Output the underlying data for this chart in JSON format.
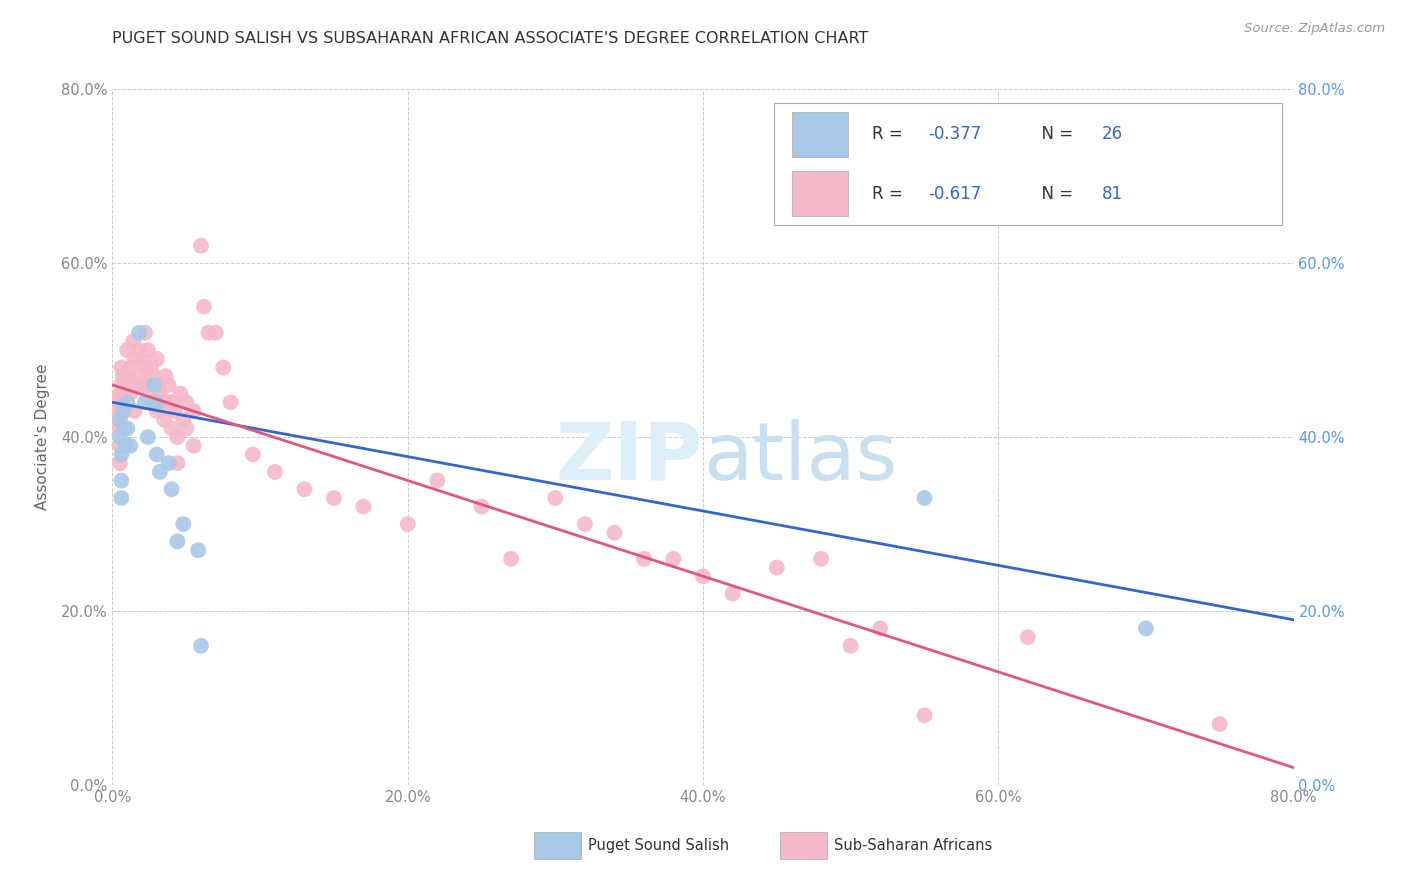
{
  "title": "PUGET SOUND SALISH VS SUBSAHARAN AFRICAN ASSOCIATE'S DEGREE CORRELATION CHART",
  "source": "Source: ZipAtlas.com",
  "ylabel": "Associate's Degree",
  "xlim": [
    0.0,
    0.8
  ],
  "ylim": [
    0.0,
    0.8
  ],
  "xticks": [
    0.0,
    0.2,
    0.4,
    0.6,
    0.8
  ],
  "yticks": [
    0.0,
    0.2,
    0.4,
    0.6,
    0.8
  ],
  "xticklabels": [
    "0.0%",
    "20.0%",
    "40.0%",
    "60.0%",
    "80.0%"
  ],
  "yticklabels": [
    "0.0%",
    "20.0%",
    "40.0%",
    "60.0%",
    "80.0%"
  ],
  "right_yticklabels": [
    "0.0%",
    "20.0%",
    "40.0%",
    "60.0%",
    "80.0%"
  ],
  "blue_color": "#a8c8e8",
  "pink_color": "#f5b8c8",
  "blue_line_color": "#3366cc",
  "pink_line_color": "#e05878",
  "background_color": "#ffffff",
  "grid_color": "#cccccc",
  "title_color": "#333333",
  "source_color": "#999999",
  "watermark_zip_color": "#ddeef8",
  "watermark_atlas_color": "#c8dff0",
  "legend_text_color": "#333333",
  "legend_value_color": "#3366cc",
  "tick_color": "#888888",
  "right_tick_color": "#5599ee",
  "blue_points": [
    [
      0.005,
      0.42
    ],
    [
      0.005,
      0.4
    ],
    [
      0.006,
      0.38
    ],
    [
      0.006,
      0.35
    ],
    [
      0.006,
      0.33
    ],
    [
      0.007,
      0.43
    ],
    [
      0.008,
      0.41
    ],
    [
      0.009,
      0.39
    ],
    [
      0.01,
      0.44
    ],
    [
      0.01,
      0.41
    ],
    [
      0.012,
      0.39
    ],
    [
      0.018,
      0.52
    ],
    [
      0.022,
      0.44
    ],
    [
      0.024,
      0.4
    ],
    [
      0.028,
      0.46
    ],
    [
      0.03,
      0.44
    ],
    [
      0.03,
      0.38
    ],
    [
      0.032,
      0.36
    ],
    [
      0.038,
      0.37
    ],
    [
      0.04,
      0.34
    ],
    [
      0.044,
      0.28
    ],
    [
      0.048,
      0.3
    ],
    [
      0.058,
      0.27
    ],
    [
      0.06,
      0.16
    ],
    [
      0.55,
      0.33
    ],
    [
      0.7,
      0.18
    ]
  ],
  "pink_points": [
    [
      0.003,
      0.44
    ],
    [
      0.004,
      0.42
    ],
    [
      0.005,
      0.45
    ],
    [
      0.005,
      0.43
    ],
    [
      0.005,
      0.41
    ],
    [
      0.005,
      0.39
    ],
    [
      0.005,
      0.37
    ],
    [
      0.006,
      0.48
    ],
    [
      0.006,
      0.46
    ],
    [
      0.007,
      0.47
    ],
    [
      0.008,
      0.45
    ],
    [
      0.008,
      0.43
    ],
    [
      0.01,
      0.5
    ],
    [
      0.01,
      0.47
    ],
    [
      0.012,
      0.48
    ],
    [
      0.012,
      0.45
    ],
    [
      0.014,
      0.51
    ],
    [
      0.015,
      0.49
    ],
    [
      0.015,
      0.46
    ],
    [
      0.015,
      0.43
    ],
    [
      0.018,
      0.5
    ],
    [
      0.018,
      0.47
    ],
    [
      0.02,
      0.49
    ],
    [
      0.02,
      0.46
    ],
    [
      0.022,
      0.52
    ],
    [
      0.022,
      0.48
    ],
    [
      0.024,
      0.5
    ],
    [
      0.024,
      0.46
    ],
    [
      0.026,
      0.48
    ],
    [
      0.026,
      0.45
    ],
    [
      0.028,
      0.47
    ],
    [
      0.028,
      0.44
    ],
    [
      0.03,
      0.49
    ],
    [
      0.03,
      0.46
    ],
    [
      0.03,
      0.43
    ],
    [
      0.032,
      0.45
    ],
    [
      0.034,
      0.44
    ],
    [
      0.035,
      0.42
    ],
    [
      0.036,
      0.47
    ],
    [
      0.036,
      0.44
    ],
    [
      0.038,
      0.46
    ],
    [
      0.04,
      0.44
    ],
    [
      0.04,
      0.41
    ],
    [
      0.042,
      0.43
    ],
    [
      0.044,
      0.4
    ],
    [
      0.044,
      0.37
    ],
    [
      0.046,
      0.45
    ],
    [
      0.048,
      0.42
    ],
    [
      0.05,
      0.44
    ],
    [
      0.05,
      0.41
    ],
    [
      0.055,
      0.43
    ],
    [
      0.055,
      0.39
    ],
    [
      0.06,
      0.62
    ],
    [
      0.062,
      0.55
    ],
    [
      0.065,
      0.52
    ],
    [
      0.07,
      0.52
    ],
    [
      0.075,
      0.48
    ],
    [
      0.08,
      0.44
    ],
    [
      0.095,
      0.38
    ],
    [
      0.11,
      0.36
    ],
    [
      0.13,
      0.34
    ],
    [
      0.15,
      0.33
    ],
    [
      0.17,
      0.32
    ],
    [
      0.2,
      0.3
    ],
    [
      0.22,
      0.35
    ],
    [
      0.25,
      0.32
    ],
    [
      0.27,
      0.26
    ],
    [
      0.3,
      0.33
    ],
    [
      0.32,
      0.3
    ],
    [
      0.34,
      0.29
    ],
    [
      0.36,
      0.26
    ],
    [
      0.38,
      0.26
    ],
    [
      0.4,
      0.24
    ],
    [
      0.42,
      0.22
    ],
    [
      0.45,
      0.25
    ],
    [
      0.48,
      0.26
    ],
    [
      0.5,
      0.16
    ],
    [
      0.52,
      0.18
    ],
    [
      0.55,
      0.08
    ],
    [
      0.62,
      0.17
    ],
    [
      0.75,
      0.07
    ]
  ],
  "blue_line": {
    "x0": 0.0,
    "x1": 0.8,
    "y0": 0.44,
    "y1": 0.19
  },
  "pink_line": {
    "x0": 0.0,
    "x1": 0.8,
    "y0": 0.46,
    "y1": 0.02
  }
}
